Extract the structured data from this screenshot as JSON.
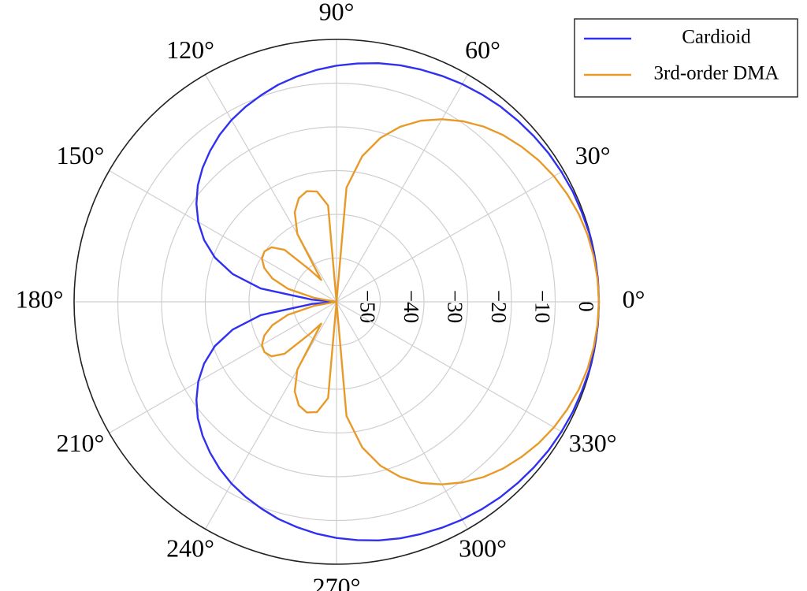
{
  "chart_data": {
    "type": "polar",
    "theta": [
      0,
      5,
      10,
      15,
      20,
      25,
      30,
      35,
      40,
      45,
      50,
      55,
      60,
      65,
      70,
      75,
      80,
      85,
      90,
      95,
      100,
      105,
      110,
      115,
      120,
      125,
      130,
      135,
      140,
      145,
      150,
      155,
      160,
      165,
      170,
      175,
      180,
      185,
      190,
      195,
      200,
      205,
      210,
      215,
      220,
      225,
      230,
      235,
      240,
      245,
      250,
      255,
      260,
      265,
      270,
      275,
      280,
      285,
      290,
      295,
      300,
      305,
      310,
      315,
      320,
      325,
      330,
      335,
      340,
      345,
      350,
      355
    ],
    "series": [
      {
        "name": "Cardioid",
        "color": "#3030f0",
        "values": [
          0,
          0,
          -0.1,
          -0.1,
          -0.3,
          -0.4,
          -0.6,
          -0.8,
          -1.1,
          -1.4,
          -1.7,
          -2.1,
          -2.5,
          -3,
          -3.5,
          -4,
          -4.6,
          -5.3,
          -6,
          -6.8,
          -7.7,
          -8.6,
          -9.7,
          -10.8,
          -12,
          -13.4,
          -15,
          -16.7,
          -18.6,
          -20.9,
          -23.5,
          -26.6,
          -30.4,
          -35.4,
          -42.4,
          -54.4,
          -60,
          -54.4,
          -42.4,
          -35.4,
          -30.4,
          -26.6,
          -23.5,
          -20.9,
          -18.6,
          -16.7,
          -15,
          -13.4,
          -12,
          -10.8,
          -9.7,
          -8.6,
          -7.7,
          -6.8,
          -6,
          -5.3,
          -4.6,
          -4,
          -3.5,
          -3,
          -2.5,
          -2.1,
          -1.7,
          -1.4,
          -1.1,
          -0.8,
          -0.6,
          -0.4,
          -0.3,
          -0.1,
          -0.1,
          0
        ]
      },
      {
        "name": "3rd-order DMA",
        "color": "#e89a28",
        "values": [
          0,
          -0.1,
          -0.3,
          -0.6,
          -1.1,
          -1.8,
          -2.6,
          -3.6,
          -4.8,
          -6.1,
          -7.7,
          -9.6,
          -11.8,
          -14.3,
          -17.4,
          -21.2,
          -26.2,
          -33.8,
          -60,
          -37.9,
          -34.4,
          -33.8,
          -34.8,
          -37.4,
          -42.1,
          -53.9,
          -50.3,
          -43.2,
          -40.6,
          -39.9,
          -40.3,
          -41.8,
          -44.4,
          -48.5,
          -54.9,
          -60,
          -60,
          -60,
          -54.9,
          -48.5,
          -44.4,
          -41.8,
          -40.3,
          -39.9,
          -40.6,
          -43.2,
          -50.3,
          -53.9,
          -42.1,
          -37.4,
          -34.8,
          -33.8,
          -34.4,
          -37.9,
          -60,
          -33.8,
          -26.2,
          -21.2,
          -17.4,
          -14.3,
          -11.8,
          -9.6,
          -7.7,
          -6.1,
          -4.8,
          -3.6,
          -2.6,
          -1.8,
          -1.1,
          -0.6,
          -0.3,
          -0.1
        ]
      }
    ],
    "rlim": [
      -60,
      0
    ],
    "rticks": [
      {
        "value": -50,
        "label": "−50"
      },
      {
        "value": -40,
        "label": "−40"
      },
      {
        "value": -30,
        "label": "−30"
      },
      {
        "value": -20,
        "label": "−20"
      },
      {
        "value": -10,
        "label": "−10"
      },
      0
    ],
    "thetaticks": [
      {
        "value": 0,
        "label": "0°"
      },
      {
        "value": 30,
        "label": "30°"
      },
      {
        "value": 60,
        "label": "60°"
      },
      {
        "value": 90,
        "label": "90°"
      },
      {
        "value": 120,
        "label": "120°"
      },
      {
        "value": 150,
        "label": "150°"
      },
      {
        "value": 180,
        "label": "180°"
      },
      {
        "value": 210,
        "label": "210°"
      },
      {
        "value": 240,
        "label": "240°"
      },
      {
        "value": 270,
        "label": "270°"
      },
      {
        "value": 300,
        "label": "300°"
      },
      {
        "value": 330,
        "label": "330°"
      }
    ],
    "grid": true,
    "legend": "top-right"
  }
}
